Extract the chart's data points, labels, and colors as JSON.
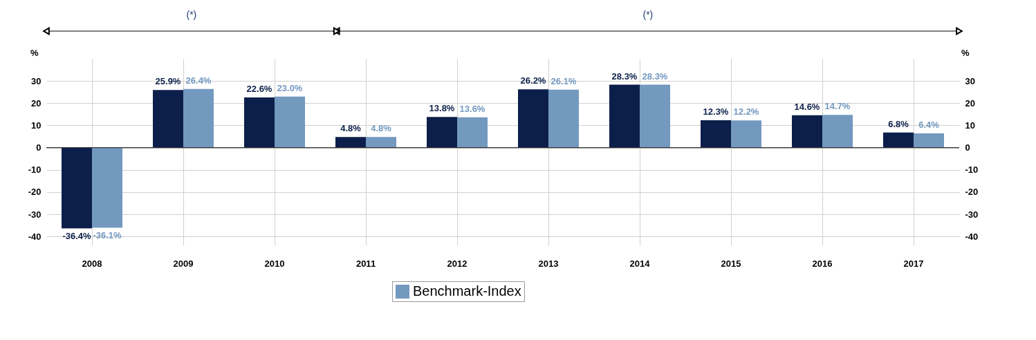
{
  "chart_data": {
    "type": "bar",
    "categories": [
      "2008",
      "2009",
      "2010",
      "2011",
      "2012",
      "2013",
      "2014",
      "2015",
      "2016",
      "2017"
    ],
    "series": [
      {
        "color": "#0c1f4a",
        "values": [
          -36.4,
          25.9,
          22.6,
          4.8,
          13.8,
          26.2,
          28.3,
          12.3,
          14.6,
          6.8
        ],
        "value_labels": [
          "-36.4%",
          "25.9%",
          "22.6%",
          "4.8%",
          "13.8%",
          "26.2%",
          "28.3%",
          "12.3%",
          "14.6%",
          "6.8%"
        ]
      },
      {
        "name": "Benchmark-Index",
        "color": "#7399bf",
        "values": [
          -36.1,
          26.4,
          23.0,
          4.8,
          13.6,
          26.1,
          28.3,
          12.2,
          14.7,
          6.4
        ],
        "value_labels": [
          "-36.1%",
          "26.4%",
          "23.0%",
          "4.8%",
          "13.6%",
          "26.1%",
          "28.3%",
          "12.2%",
          "14.7%",
          "6.4%"
        ]
      }
    ],
    "ylabel": "%",
    "y2label": "%",
    "ylim": [
      -44,
      40
    ],
    "yticks": [
      -40,
      -30,
      -20,
      -10,
      0,
      10,
      20,
      30
    ],
    "y2lim": [
      -44,
      40
    ],
    "y2ticks": [
      -40,
      -30,
      -20,
      -10,
      0,
      10,
      20,
      30
    ],
    "annotations": [
      "(*)",
      "(*)"
    ],
    "grid": true,
    "legend": "bottom"
  }
}
